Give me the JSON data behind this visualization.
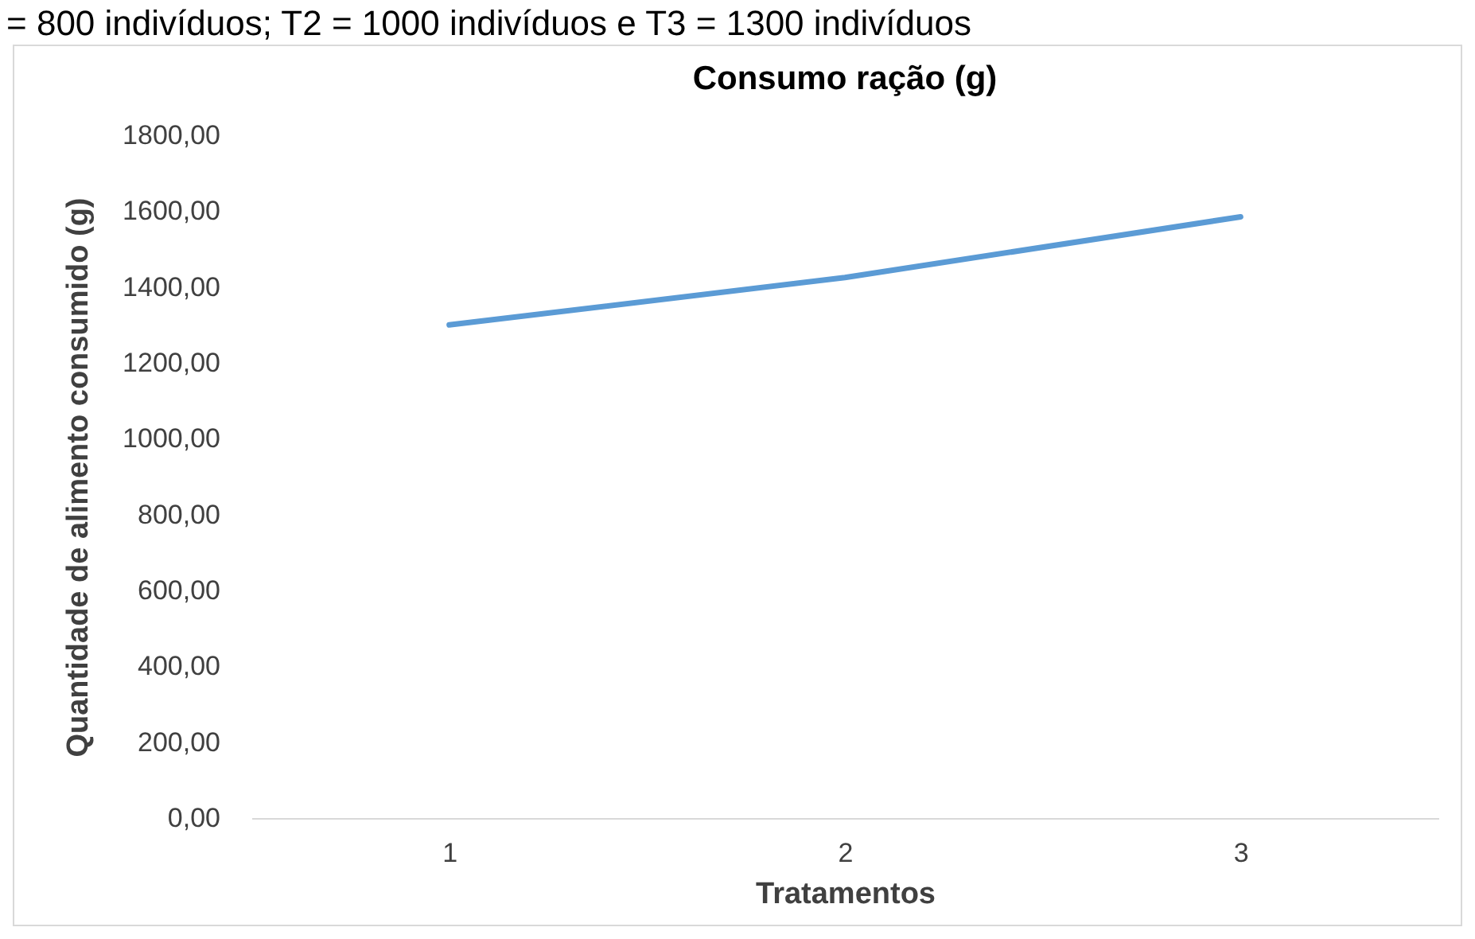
{
  "chart_data": {
    "type": "line",
    "title": "Consumo ração (g)",
    "xlabel": "Tratamentos",
    "ylabel": "Quantidade de alimento consumido (g)",
    "annotations": [
      "= 800 indivíduos; T2 = 1000 indivíduos e T3 = 1300 indivíduos"
    ],
    "categories": [
      "1",
      "2",
      "3"
    ],
    "series": [
      {
        "color": "#5b9bd5",
        "values": [
          1300,
          1425,
          1585
        ]
      }
    ],
    "ylim": [
      0,
      1800
    ],
    "yticks": [
      {
        "value": 0,
        "label": "0,00"
      },
      {
        "value": 200,
        "label": "200,00"
      },
      {
        "value": 400,
        "label": "400,00"
      },
      {
        "value": 600,
        "label": "600,00"
      },
      {
        "value": 800,
        "label": "800,00"
      },
      {
        "value": 1000,
        "label": "1000,00"
      },
      {
        "value": 1200,
        "label": "1200,00"
      },
      {
        "value": 1400,
        "label": "1400,00"
      },
      {
        "value": 1600,
        "label": "1600,00"
      },
      {
        "value": 1800,
        "label": "1800,00"
      }
    ],
    "grid": false,
    "marker": "none",
    "line_style": "solid"
  }
}
